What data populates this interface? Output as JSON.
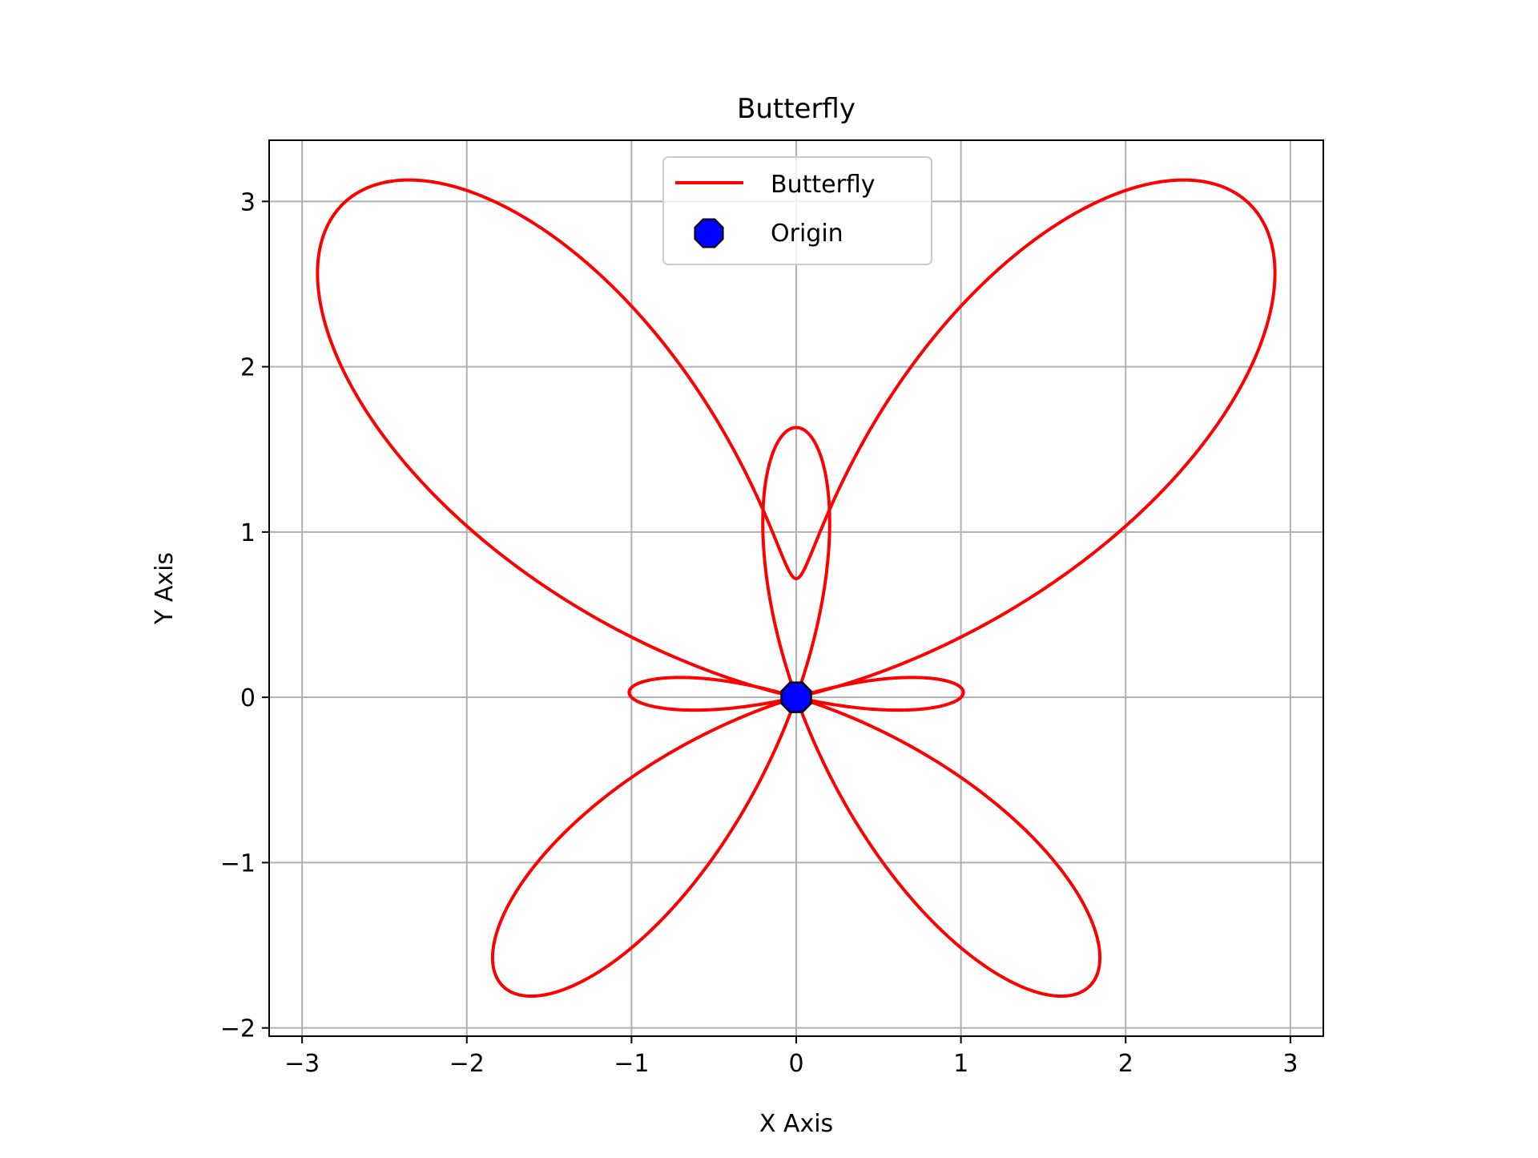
{
  "chart_data": {
    "type": "line",
    "title": "Butterfly",
    "xlabel": "X Axis",
    "ylabel": "Y Axis",
    "xlim": [
      -3.2,
      3.2
    ],
    "ylim": [
      -2.05,
      3.37
    ],
    "xticks": [
      -3,
      -2,
      -1,
      0,
      1,
      2,
      3
    ],
    "yticks": [
      -2,
      -1,
      0,
      1,
      2,
      3
    ],
    "grid": true,
    "legend_position": "top-center",
    "series": [
      {
        "name": "Butterfly",
        "kind": "line",
        "color": "#ff0000",
        "curve": "polar",
        "equation": "r = e^(sin θ) − 2cos(4θ)",
        "theta_range": [
          0,
          6.2832
        ]
      },
      {
        "name": "Origin",
        "kind": "scatter",
        "marker": "octagon",
        "color": "#0000ff",
        "edgecolor": "#000000",
        "points": [
          [
            0,
            0
          ]
        ]
      }
    ]
  }
}
